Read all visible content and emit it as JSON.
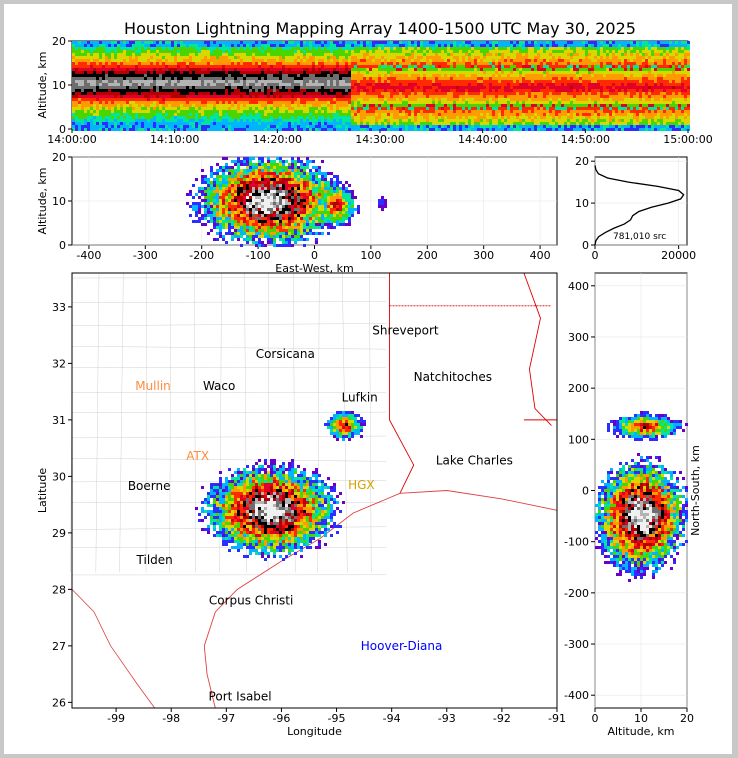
{
  "title": "Houston Lightning Mapping Array 1400-1500 UTC May 30, 2025",
  "palette": [
    "#6a00c8",
    "#2d2dff",
    "#00b4ff",
    "#00e6a0",
    "#4ad400",
    "#d8d800",
    "#ff9a00",
    "#ff2a00",
    "#e0002a",
    "#b40000",
    "#000000",
    "#6e6e6e",
    "#b4b4b4",
    "#f0f0f0"
  ],
  "chart_data": [
    {
      "id": "time-height",
      "type": "heatmap",
      "ylabel": "Altitude, km",
      "xlim": [
        "14:00:00",
        "15:00:00"
      ],
      "ylim": [
        0,
        20
      ],
      "xticks": [
        "14:00:00",
        "14:10:00",
        "14:20:00",
        "14:30:00",
        "14:40:00",
        "14:50:00",
        "15:00:00"
      ],
      "yticks": [
        0,
        10,
        20
      ],
      "cores": [
        {
          "t0": 0,
          "t1": 27,
          "alt": 10.5,
          "thick": 3.5,
          "level": 12
        },
        {
          "t0": 27,
          "t1": 60,
          "alt": 9.5,
          "thick": 4.5,
          "level": 8
        }
      ]
    },
    {
      "id": "ew-height",
      "type": "heatmap",
      "xlabel": "East-West, km",
      "ylabel": "Altitude, km",
      "xlim": [
        -430,
        430
      ],
      "ylim": [
        0,
        20
      ],
      "xticks": [
        -400,
        -300,
        -200,
        -100,
        0,
        100,
        200,
        300,
        400
      ],
      "yticks": [
        0,
        10,
        20
      ],
      "blobs": [
        {
          "x": -80,
          "y": 10,
          "rx": 130,
          "ry": 10,
          "peak": 13
        },
        {
          "x": 40,
          "y": 9,
          "rx": 35,
          "ry": 5,
          "peak": 8
        },
        {
          "x": 120,
          "y": 9.5,
          "rx": 8,
          "ry": 1.5,
          "peak": 1
        }
      ]
    },
    {
      "id": "altitude-histogram",
      "type": "line",
      "xlabel": "",
      "xlim": [
        0,
        22000
      ],
      "ylim": [
        0,
        21
      ],
      "xticks": [
        0,
        20000
      ],
      "yticks": [
        0,
        10,
        20
      ],
      "annotation": "781,010 src",
      "x": [
        0,
        200,
        900,
        2500,
        4500,
        7000,
        8500,
        9000,
        10500,
        13500,
        17500,
        20500,
        21200,
        20000,
        15000,
        8000,
        3000,
        800,
        200,
        0
      ],
      "y": [
        0.0,
        1.0,
        2.0,
        3.0,
        4.0,
        5.0,
        6.0,
        7.0,
        8.0,
        9.0,
        10.0,
        11.0,
        12.0,
        13.0,
        14.0,
        15.0,
        16.0,
        17.0,
        18.0,
        19.0
      ]
    },
    {
      "id": "plan-view",
      "type": "heatmap",
      "xlabel": "Longitude",
      "ylabel": "Latitude",
      "xlim": [
        -99.8,
        -91.0
      ],
      "ylim": [
        25.9,
        33.6
      ],
      "xticks": [
        -99,
        -98,
        -97,
        -96,
        -95,
        -94,
        -93,
        -92,
        -91
      ],
      "yticks": [
        26,
        27,
        28,
        29,
        30,
        31,
        32,
        33
      ],
      "blobs": [
        {
          "x": -96.2,
          "y": 29.4,
          "rx": 1.2,
          "ry": 0.8,
          "peak": 13
        },
        {
          "x": -94.85,
          "y": 30.9,
          "rx": 0.35,
          "ry": 0.25,
          "peak": 8
        }
      ],
      "cities": [
        {
          "name": "Shreveport",
          "lon": -93.75,
          "lat": 32.58,
          "color": "#000000"
        },
        {
          "name": "Corsicana",
          "lon": -95.93,
          "lat": 32.17,
          "color": "#000000"
        },
        {
          "name": "Natchitoches",
          "lon": -92.89,
          "lat": 31.76,
          "color": "#000000"
        },
        {
          "name": "Mullin",
          "lon": -98.33,
          "lat": 31.6,
          "color": "#ff8c3c"
        },
        {
          "name": "Waco",
          "lon": -97.13,
          "lat": 31.6,
          "color": "#000000"
        },
        {
          "name": "Lufkin",
          "lon": -94.58,
          "lat": 31.4,
          "color": "#000000"
        },
        {
          "name": "ATX",
          "lon": -97.52,
          "lat": 30.36,
          "color": "#ff8c3c"
        },
        {
          "name": "Lake Charles",
          "lon": -92.5,
          "lat": 30.28,
          "color": "#000000"
        },
        {
          "name": "Boerne",
          "lon": -98.4,
          "lat": 29.83,
          "color": "#000000"
        },
        {
          "name": "HGX",
          "lon": -94.55,
          "lat": 29.85,
          "color": "#d4a000"
        },
        {
          "name": "Tilden",
          "lon": -98.3,
          "lat": 28.52,
          "color": "#000000"
        },
        {
          "name": "Corpus Christi",
          "lon": -96.55,
          "lat": 27.8,
          "color": "#000000"
        },
        {
          "name": "Hoover-Diana",
          "lon": -93.82,
          "lat": 27.0,
          "color": "#0000ff"
        },
        {
          "name": "Port Isabel",
          "lon": -96.75,
          "lat": 26.1,
          "color": "#000000"
        }
      ]
    },
    {
      "id": "ns-height",
      "type": "heatmap",
      "xlabel": "Altitude, km",
      "ylabel": "North-South, km",
      "xlim": [
        0,
        20
      ],
      "ylim": [
        -425,
        425
      ],
      "xticks": [
        0,
        10,
        20
      ],
      "yticks": [
        -400,
        -300,
        -200,
        -100,
        0,
        100,
        200,
        300,
        400
      ],
      "blobs": [
        {
          "x": 10,
          "y": -50,
          "rx": 10,
          "ry": 110,
          "peak": 13
        },
        {
          "x": 11,
          "y": 125,
          "rx": 8,
          "ry": 25,
          "peak": 8
        }
      ]
    }
  ]
}
